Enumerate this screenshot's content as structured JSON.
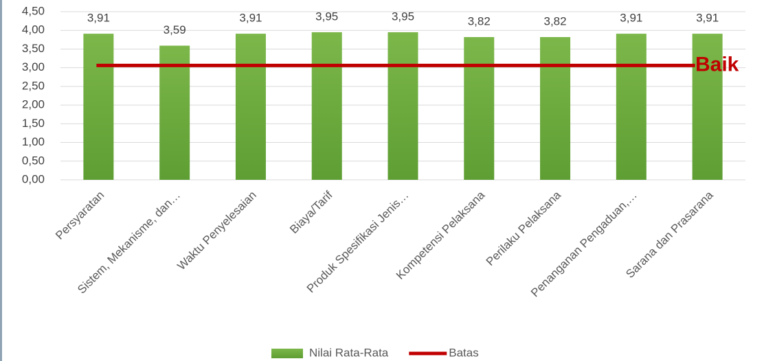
{
  "chart_data": {
    "type": "bar",
    "categories": [
      "Persyaratan",
      "Sistem, Mekanisme, dan…",
      "Waktu Penyelesaian",
      "Biaya/Tarif",
      "Produk Spesifikasi Jenis…",
      "Kompetensi Pelaksana",
      "Perilaku Pelaksana",
      "Penanganan Pengaduan,…",
      "Sarana dan Prasarana"
    ],
    "series": [
      {
        "name": "Nilai Rata-Rata",
        "type": "bar",
        "color": "#6aaa3c",
        "values": [
          3.91,
          3.59,
          3.91,
          3.95,
          3.95,
          3.82,
          3.82,
          3.91,
          3.91
        ],
        "value_labels": [
          "3,91",
          "3,59",
          "3,91",
          "3,95",
          "3,95",
          "3,82",
          "3,82",
          "3,91",
          "3,91"
        ]
      },
      {
        "name": "Batas",
        "type": "line",
        "color": "#c00000",
        "values": [
          3.06,
          3.06,
          3.06,
          3.06,
          3.06,
          3.06,
          3.06,
          3.06,
          3.06
        ]
      }
    ],
    "annotations": [
      "Baik"
    ],
    "ylim": [
      0,
      4.5
    ],
    "yticks": [
      {
        "value": 0,
        "label": "0,00"
      },
      {
        "value": 0.5,
        "label": "0,50"
      },
      {
        "value": 1,
        "label": "1,00"
      },
      {
        "value": 1.5,
        "label": "1,50"
      },
      {
        "value": 2,
        "label": "2,00"
      },
      {
        "value": 2.5,
        "label": "2,50"
      },
      {
        "value": 3,
        "label": "3,00"
      },
      {
        "value": 3.5,
        "label": "3,50"
      },
      {
        "value": 4,
        "label": "4,00"
      },
      {
        "value": 4.5,
        "label": "4,50"
      }
    ],
    "grid": true,
    "legend": "bottom"
  }
}
